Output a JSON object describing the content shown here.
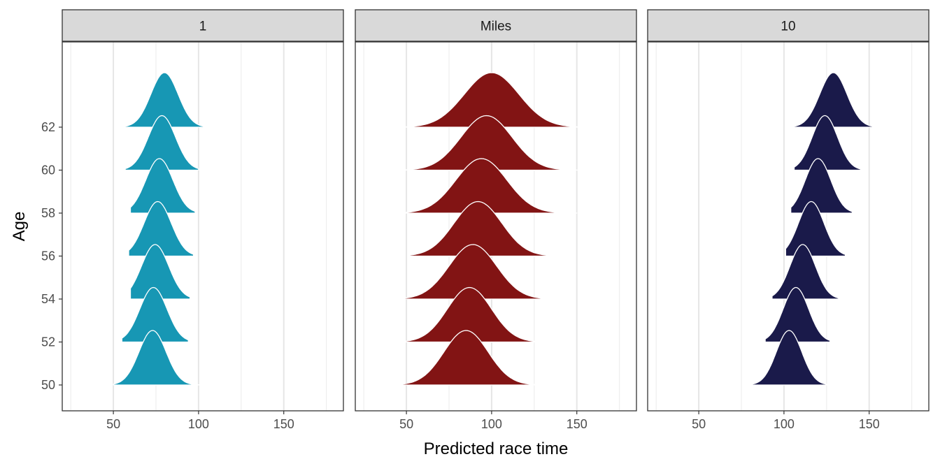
{
  "chart_data": {
    "type": "ridgeline",
    "xlabel": "Predicted race time",
    "ylabel": "Age",
    "x_ticks": [
      50,
      100,
      150
    ],
    "xlim": [
      20,
      185
    ],
    "y_ticks": [
      50,
      52,
      54,
      56,
      58,
      60,
      62
    ],
    "grid": true,
    "legend": "none",
    "panels": [
      {
        "strip": "1",
        "fill": "#1797b4",
        "series": [
          {
            "age": 50,
            "peak": 73,
            "sd": 8.0,
            "min": 50,
            "max": 101
          },
          {
            "age": 52,
            "peak": 73.5,
            "sd": 8.0,
            "min": 55,
            "max": 94
          },
          {
            "age": 54,
            "peak": 74.5,
            "sd": 8.0,
            "min": 60,
            "max": 95
          },
          {
            "age": 56,
            "peak": 76,
            "sd": 8.0,
            "min": 59,
            "max": 97
          },
          {
            "age": 58,
            "peak": 77,
            "sd": 8.0,
            "min": 60,
            "max": 98
          },
          {
            "age": 60,
            "peak": 78.5,
            "sd": 8.0,
            "min": 57,
            "max": 100
          },
          {
            "age": 62,
            "peak": 80,
            "sd": 8.0,
            "min": 51,
            "max": 104
          }
        ]
      },
      {
        "strip": "Miles",
        "fill": "#821414",
        "series": [
          {
            "age": 50,
            "peak": 85,
            "sd": 13.0,
            "min": 38,
            "max": 136
          },
          {
            "age": 52,
            "peak": 87,
            "sd": 13.0,
            "min": 46,
            "max": 128
          },
          {
            "age": 54,
            "peak": 89,
            "sd": 14.0,
            "min": 45,
            "max": 136
          },
          {
            "age": 56,
            "peak": 92,
            "sd": 14.0,
            "min": 52,
            "max": 134
          },
          {
            "age": 58,
            "peak": 94,
            "sd": 15.0,
            "min": 43,
            "max": 150
          },
          {
            "age": 60,
            "peak": 97,
            "sd": 15.0,
            "min": 39,
            "max": 166
          },
          {
            "age": 62,
            "peak": 100,
            "sd": 16.0,
            "min": 48,
            "max": 155
          }
        ]
      },
      {
        "strip": "10",
        "fill": "#1a1a4a",
        "series": [
          {
            "age": 50,
            "peak": 103,
            "sd": 7.5,
            "min": 80,
            "max": 126
          },
          {
            "age": 52,
            "peak": 107,
            "sd": 7.5,
            "min": 89,
            "max": 127
          },
          {
            "age": 54,
            "peak": 111,
            "sd": 7.5,
            "min": 93,
            "max": 132
          },
          {
            "age": 56,
            "peak": 116,
            "sd": 7.5,
            "min": 101,
            "max": 136
          },
          {
            "age": 58,
            "peak": 120,
            "sd": 7.5,
            "min": 104,
            "max": 140
          },
          {
            "age": 60,
            "peak": 124,
            "sd": 7.5,
            "min": 106,
            "max": 145
          },
          {
            "age": 62,
            "peak": 129,
            "sd": 8.0,
            "min": 106,
            "max": 154
          }
        ]
      }
    ]
  }
}
